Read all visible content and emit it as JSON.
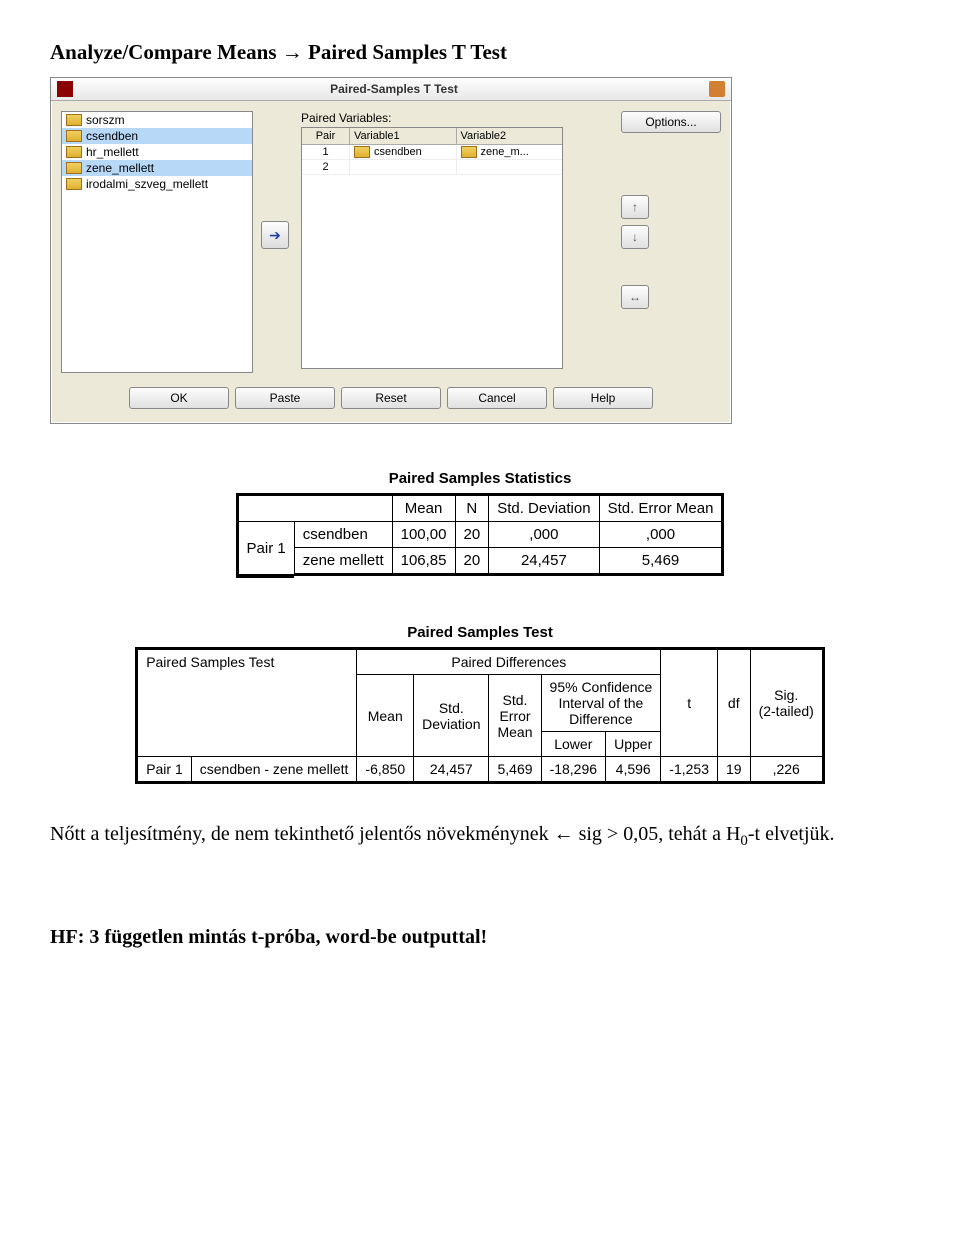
{
  "heading": "Analyze/Compare Means → Paired Samples T Test",
  "dialog": {
    "title": "Paired-Samples T Test",
    "paired_label": "Paired Variables:",
    "options_btn": "Options...",
    "head_pair": "Pair",
    "head_v1": "Variable1",
    "head_v2": "Variable2",
    "rows": [
      {
        "pair": "1",
        "v1": "csendben",
        "v2": "zene_m..."
      },
      {
        "pair": "2",
        "v1": "",
        "v2": ""
      }
    ],
    "varlist": [
      {
        "name": "sorszm",
        "sel": false
      },
      {
        "name": "csendben",
        "sel": true
      },
      {
        "name": "hr_mellett",
        "sel": false
      },
      {
        "name": "zene_mellett",
        "sel": true
      },
      {
        "name": "irodalmi_szveg_mellett",
        "sel": false
      }
    ],
    "bottom": [
      "OK",
      "Paste",
      "Reset",
      "Cancel",
      "Help"
    ]
  },
  "stats1": {
    "title": "Paired Samples Statistics",
    "cols": [
      "Mean",
      "N",
      "Std. Deviation",
      "Std. Error Mean"
    ],
    "rowgrp": "Pair 1",
    "rows": [
      {
        "label": "csendben",
        "mean": "100,00",
        "n": "20",
        "sd": ",000",
        "se": ",000"
      },
      {
        "label": "zene mellett",
        "mean": "106,85",
        "n": "20",
        "sd": "24,457",
        "se": "5,469"
      }
    ]
  },
  "stats2": {
    "title": "Paired Samples Test",
    "rowhead": "Paired Samples Test",
    "pd": "Paired Differences",
    "ci_top": "95% Confidence",
    "ci_mid": "Interval of the",
    "ci_bot": "Difference",
    "h_mean": "Mean",
    "h_sd": "Std. Deviation",
    "h_se_top": "Std.",
    "h_se_mid": "Error",
    "h_se_bot": "Mean",
    "h_lower": "Lower",
    "h_upper": "Upper",
    "h_t": "t",
    "h_df": "df",
    "h_sig_top": "Sig.",
    "h_sig_bot": "(2-tailed)",
    "rowgrp": "Pair 1",
    "rowlabel": "csendben - zene mellett",
    "vals": {
      "mean": "-6,850",
      "sd": "24,457",
      "se": "5,469",
      "lower": "-18,296",
      "upper": "4,596",
      "t": "-1,253",
      "df": "19",
      "sig": ",226"
    }
  },
  "body_text_a": "Nőtt a teljesítmény, de nem tekinthető jelentős növekménynek ",
  "body_text_b": " sig > 0,05, tehát a H",
  "body_text_c": "-t elvetjük.",
  "footer": "HF: 3 független mintás t-próba, word-be outputtal!"
}
